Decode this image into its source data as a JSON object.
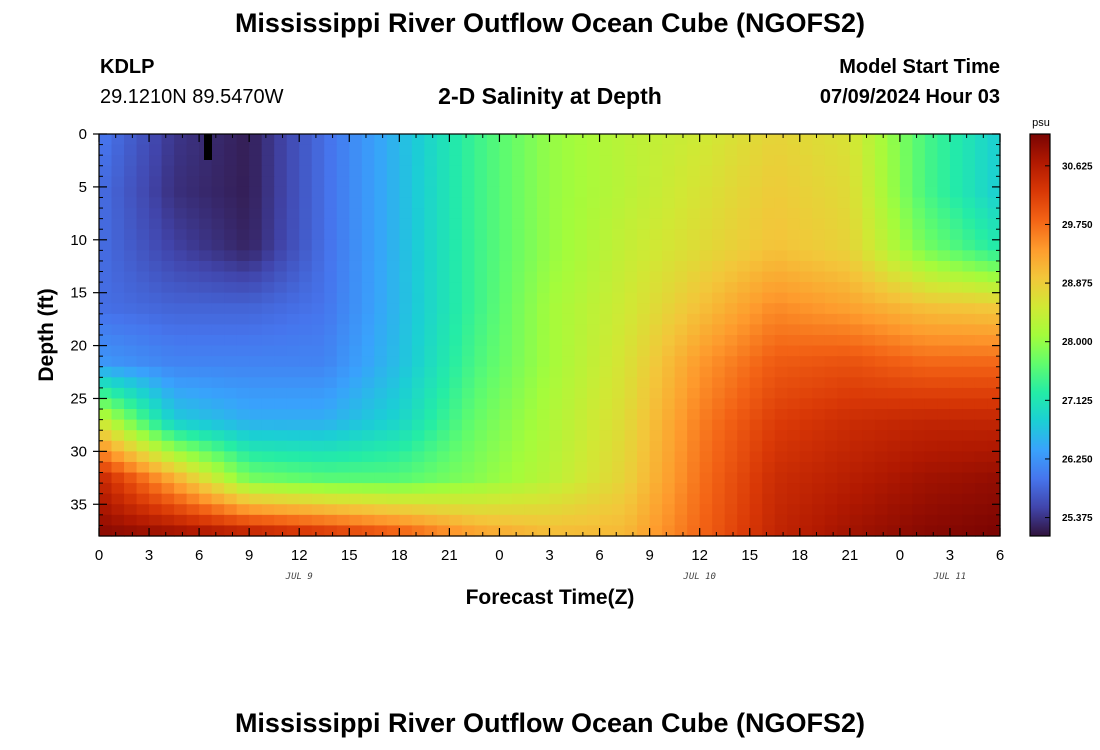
{
  "header": {
    "title": "Mississippi River Outflow Ocean Cube (NGOFS2)",
    "station": "KDLP",
    "coords": "29.1210N  89.5470W",
    "subtitle": "2-D Salinity at Depth",
    "start_label": "Model Start Time",
    "start_value": "07/09/2024 Hour 03"
  },
  "footer": {
    "title": "Mississippi River Outflow Ocean Cube (NGOFS2)"
  },
  "chart_data": {
    "type": "heatmap",
    "title": "2-D Salinity at Depth",
    "xlabel": "Forecast Time(Z)",
    "ylabel": "Depth (ft)",
    "x_tick_labels": [
      "0",
      "3",
      "6",
      "9",
      "12",
      "15",
      "18",
      "21",
      "0",
      "3",
      "6",
      "9",
      "12",
      "15",
      "18",
      "21",
      "0",
      "3",
      "6"
    ],
    "x_range_hours": [
      0,
      54
    ],
    "date_labels": [
      {
        "text": "JUL 9",
        "hour": 12
      },
      {
        "text": "JUL 10",
        "hour": 36
      },
      {
        "text": "JUL 11",
        "hour": 51
      }
    ],
    "y_ticks": [
      0,
      5,
      10,
      15,
      20,
      25,
      30,
      35
    ],
    "ylim": [
      0,
      38
    ],
    "y_inverted": true,
    "colorbar": {
      "unit": "psu",
      "ticks": [
        25.375,
        26.25,
        27.125,
        28.0,
        28.875,
        29.75,
        30.625
      ],
      "tick_labels": [
        "25.375",
        "26.250",
        "27.125",
        "28.000",
        "28.875",
        "29.750",
        "30.625"
      ],
      "range": [
        25.1,
        31.1
      ],
      "colors": [
        "#30123b",
        "#4145ab",
        "#4675ed",
        "#39a2fc",
        "#1bcfd4",
        "#24eca6",
        "#61fc6c",
        "#a4fc3b",
        "#d1e834",
        "#f3c63a",
        "#fe9b2d",
        "#f36315",
        "#d93806",
        "#b11901",
        "#7a0402"
      ]
    },
    "z_values": [
      [
        26.0,
        25.4,
        25.2,
        25.9,
        26.6,
        27.4,
        28.0,
        28.3,
        28.5,
        28.8,
        28.6,
        27.5,
        26.8
      ],
      [
        25.9,
        25.35,
        25.2,
        25.9,
        26.6,
        27.4,
        28.0,
        28.3,
        28.6,
        28.9,
        28.7,
        27.5,
        26.8
      ],
      [
        25.9,
        25.5,
        25.25,
        25.9,
        26.6,
        27.4,
        28.0,
        28.4,
        28.7,
        29.0,
        28.8,
        27.8,
        27.2
      ],
      [
        25.9,
        25.8,
        25.8,
        25.95,
        26.6,
        27.4,
        28.1,
        28.5,
        29.0,
        29.5,
        29.3,
        29.0,
        28.9
      ],
      [
        26.3,
        26.1,
        26.1,
        26.1,
        26.65,
        27.5,
        28.1,
        28.6,
        29.4,
        29.9,
        30.0,
        29.8,
        29.8
      ],
      [
        28.5,
        26.8,
        26.5,
        26.5,
        26.9,
        27.7,
        28.2,
        28.7,
        29.6,
        30.2,
        30.4,
        30.5,
        30.5
      ],
      [
        30.5,
        29.2,
        27.8,
        27.6,
        27.6,
        27.9,
        28.3,
        28.8,
        29.7,
        30.4,
        30.6,
        30.8,
        30.9
      ],
      [
        31.0,
        30.9,
        30.7,
        30.4,
        30.0,
        29.4,
        29.1,
        29.1,
        29.8,
        30.5,
        30.8,
        31.0,
        31.1
      ]
    ]
  }
}
